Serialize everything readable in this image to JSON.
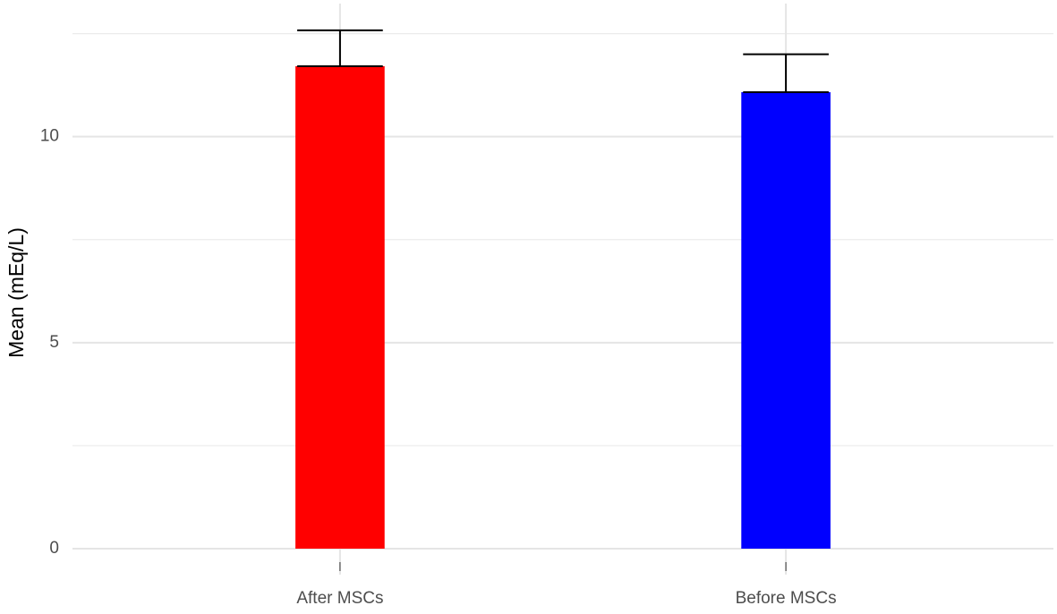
{
  "chart_data": {
    "type": "bar",
    "y_label": "Mean (mEq/L)",
    "categories": [
      "After MSCs",
      "Before MSCs"
    ],
    "values": [
      11.71,
      11.08
    ],
    "errors": [
      0.87,
      0.92
    ],
    "colors": [
      "#ff0000",
      "#0000ff"
    ],
    "ylim": [
      -0.63,
      13.23
    ],
    "yticks": [
      0,
      5,
      10
    ],
    "minor_yticks": [
      2.5,
      7.5,
      12.5
    ],
    "grid": true
  }
}
